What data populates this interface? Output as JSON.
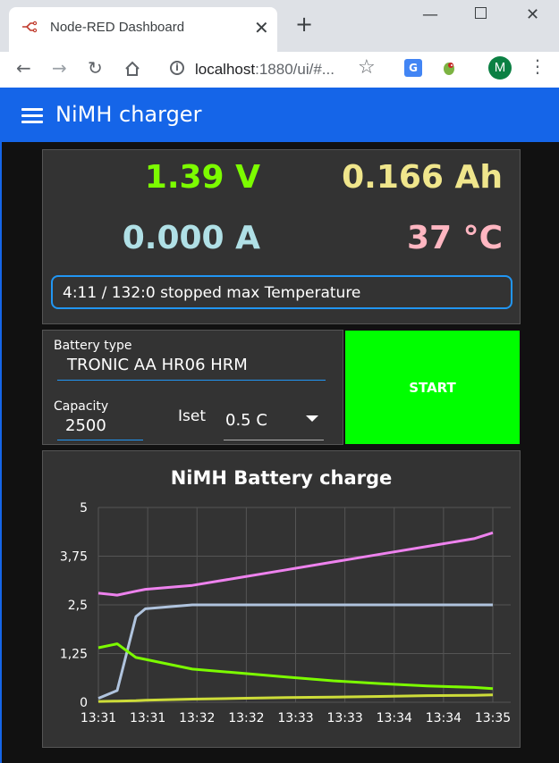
{
  "browser": {
    "tab_title": "Node-RED Dashboard",
    "url_host": "localhost",
    "url_rest": ":1880/ui/#...",
    "avatar_letter": "M",
    "icons": [
      "back-icon",
      "forward-icon",
      "reload-icon",
      "home-icon",
      "info-icon",
      "star-icon",
      "translate-icon",
      "extension-icon",
      "menu-icon"
    ]
  },
  "app": {
    "title": "NiMH charger",
    "header_color": "#1565e8"
  },
  "metrics": {
    "voltage": "1.39 V",
    "capacity": "0.166 Ah",
    "current": "0.000 A",
    "temperature": "37 °C",
    "voltage_color": "#7cfc00",
    "capacity_color": "#f0e68c",
    "current_color": "#b0e0e6",
    "temperature_color": "#ffb6c1"
  },
  "status": {
    "text": "4:11 / 132:0 stopped max Temperature"
  },
  "form": {
    "battery_type_label": "Battery type",
    "battery_type_value": "TRONIC AA HR06 HRM",
    "capacity_label": "Capacity",
    "capacity_value": "2500",
    "iset_label": "Iset",
    "iset_value": "0.5 C",
    "start_label": "START",
    "start_color": "#00ff00"
  },
  "chart_data": {
    "type": "line",
    "title": "NiMH Battery charge",
    "x_tick_labels": [
      "13:31",
      "13:31",
      "13:32",
      "13:32",
      "13:33",
      "13:33",
      "13:34",
      "13:34",
      "13:35"
    ],
    "y_tick_labels": [
      "5",
      "3,75",
      "2,5",
      "1,25",
      "0"
    ],
    "ylim": [
      0,
      5
    ],
    "x_minutes": [
      0,
      0.2,
      0.4,
      0.5,
      1.0,
      1.5,
      2.0,
      2.5,
      3.0,
      3.5,
      4.0,
      4.2
    ],
    "grid": true,
    "series": [
      {
        "color": "#ee82ee",
        "values": [
          2.8,
          2.75,
          2.85,
          2.9,
          3.0,
          3.2,
          3.4,
          3.6,
          3.8,
          4.0,
          4.2,
          4.35
        ]
      },
      {
        "color": "#b0c4de",
        "values": [
          0.1,
          0.3,
          2.2,
          2.4,
          2.5,
          2.5,
          2.5,
          2.5,
          2.5,
          2.5,
          2.5,
          2.5
        ]
      },
      {
        "color": "#7cfc00",
        "values": [
          1.4,
          1.5,
          1.15,
          1.1,
          0.85,
          0.75,
          0.65,
          0.55,
          0.48,
          0.42,
          0.38,
          0.35
        ]
      },
      {
        "color": "#cddc39",
        "values": [
          0.02,
          0.03,
          0.04,
          0.05,
          0.08,
          0.1,
          0.12,
          0.13,
          0.15,
          0.17,
          0.18,
          0.19
        ]
      }
    ]
  }
}
